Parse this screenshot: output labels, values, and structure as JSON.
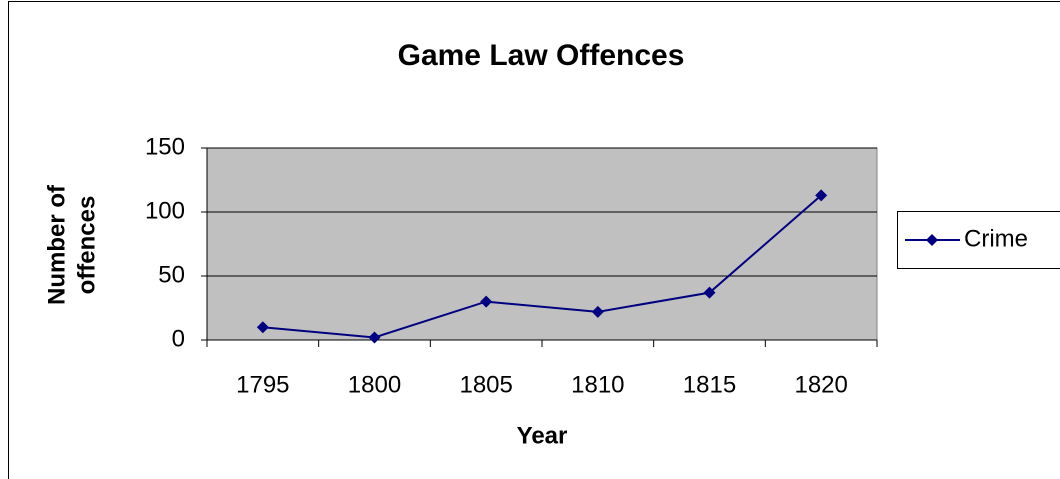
{
  "chart_data": {
    "type": "line",
    "title": "Game Law Offences",
    "x_label": "Year",
    "y_label": [
      "Number of",
      "offences"
    ],
    "categories": [
      "1795",
      "1800",
      "1805",
      "1810",
      "1815",
      "1820"
    ],
    "series": [
      {
        "name": "Crime",
        "color": "#000080",
        "values": [
          10,
          2,
          30,
          22,
          37,
          113
        ]
      }
    ],
    "ylim": [
      0,
      150
    ],
    "yticks": [
      0,
      50,
      100,
      150
    ],
    "grid": true,
    "legend": "right"
  }
}
